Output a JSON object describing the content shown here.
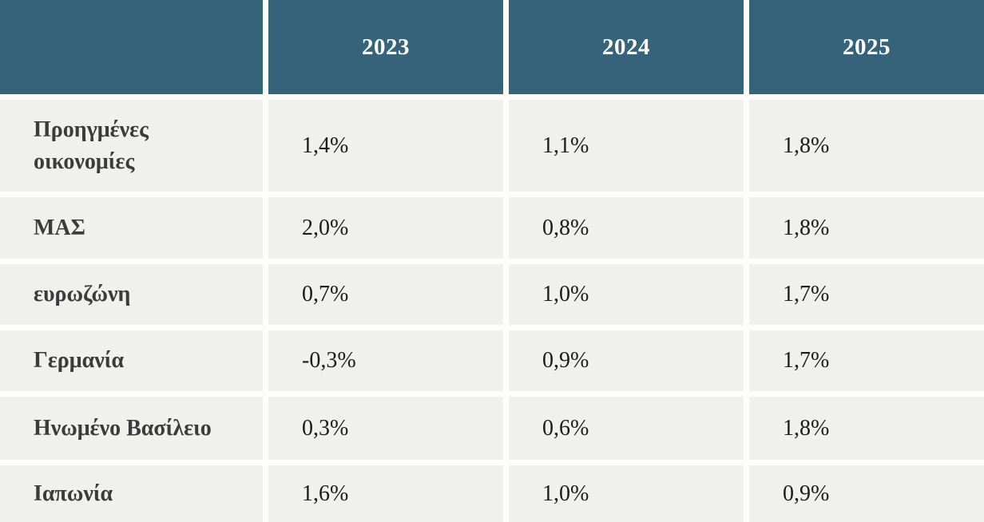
{
  "table": {
    "header": {
      "corner": "",
      "columns": [
        "2023",
        "2024",
        "2025"
      ]
    },
    "rows": [
      {
        "label": "Προηγμένες οικονομίες",
        "values": [
          "1,4%",
          "1,1%",
          "1,8%"
        ]
      },
      {
        "label": "ΜΑΣ",
        "values": [
          "2,0%",
          "0,8%",
          "1,8%"
        ]
      },
      {
        "label": "ευρωζώνη",
        "values": [
          "0,7%",
          "1,0%",
          "1,7%"
        ]
      },
      {
        "label": "Γερμανία",
        "values": [
          "-0,3%",
          "0,9%",
          "1,7%"
        ]
      },
      {
        "label": "Ηνωμένο Βασίλειο",
        "values": [
          "0,3%",
          "0,6%",
          "1,8%"
        ]
      },
      {
        "label": "Ιαπωνία",
        "values": [
          "1,6%",
          "1,0%",
          "0,9%"
        ]
      }
    ]
  },
  "colors": {
    "header_bg": "#34637A",
    "header_text": "#FFFFFF",
    "cell_bg": "#F0F0EF",
    "gutter": "#FDFDFC",
    "label_text": "#3B3B3B",
    "value_text": "#1C1C1C"
  },
  "chart_data": {
    "type": "table",
    "title": "",
    "columns": [
      "",
      "2023",
      "2024",
      "2025"
    ],
    "row_labels": [
      "Προηγμένες οικονομίες",
      "ΜΑΣ",
      "ευρωζώνη",
      "Γερμανία",
      "Ηνωμένο Βασίλειο",
      "Ιαπωνία"
    ],
    "series": [
      {
        "name": "2023",
        "values": [
          1.4,
          2.0,
          0.7,
          -0.3,
          0.3,
          1.6
        ]
      },
      {
        "name": "2024",
        "values": [
          1.1,
          0.8,
          1.0,
          0.9,
          0.6,
          1.0
        ]
      },
      {
        "name": "2025",
        "values": [
          1.8,
          1.8,
          1.7,
          1.7,
          1.8,
          0.9
        ]
      }
    ],
    "value_format": "percent, comma decimal separator",
    "notes": "Growth forecasts table; header row teal with white bold year labels; body rows light gray with white gutters; last row clipped at bottom edge"
  }
}
